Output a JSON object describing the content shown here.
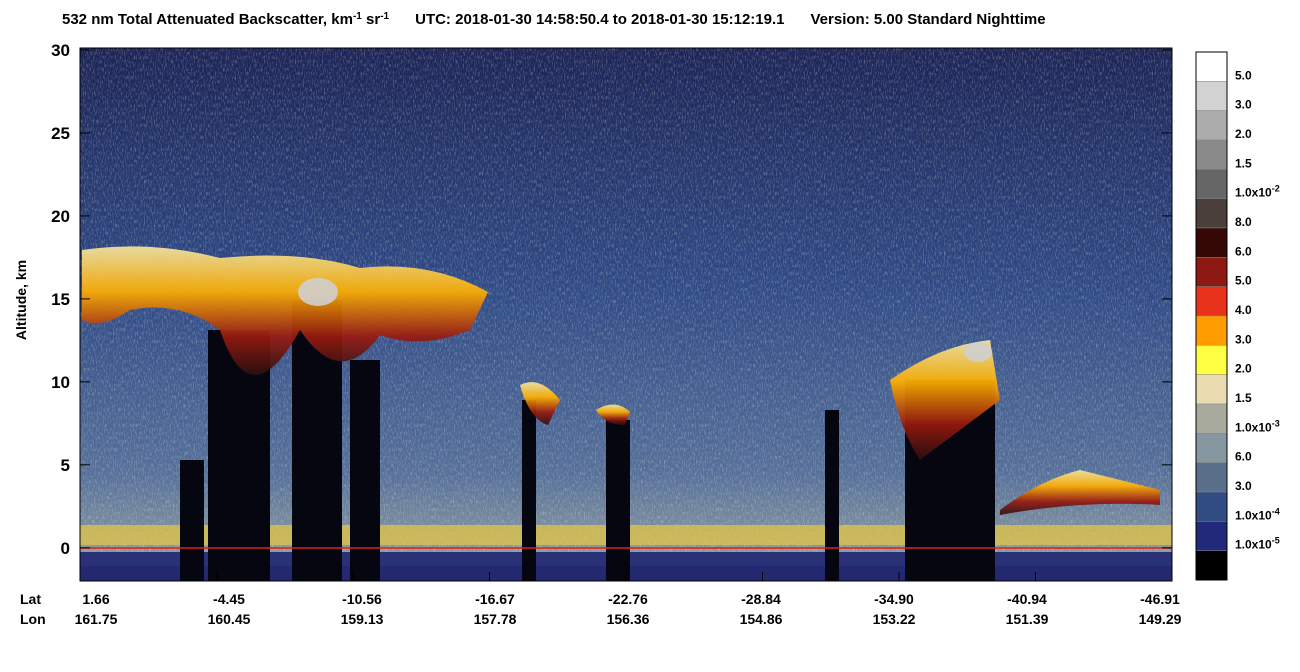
{
  "title": {
    "main": "532 nm Total Attenuated Backscatter, km",
    "sup1": "-1",
    "mid": " sr",
    "sup2": "-1",
    "utc": "UTC:  2018-01-30 14:58:50.4  to  2018-01-30 15:12:19.1",
    "version": "Version: 5.00  Standard  Nighttime"
  },
  "y_axis": {
    "label": "Altitude, km",
    "ylim": [
      -2,
      30
    ],
    "yticks": [
      0,
      5,
      10,
      15,
      20,
      25,
      30
    ]
  },
  "x_axis": {
    "lat_label": "Lat",
    "lon_label": "Lon",
    "lat": [
      "1.66",
      "-4.45",
      "-10.56",
      "-16.67",
      "-22.76",
      "-28.84",
      "-34.90",
      "-40.94",
      "-46.91"
    ],
    "lon": [
      "161.75",
      "160.45",
      "159.13",
      "157.78",
      "156.36",
      "154.86",
      "153.22",
      "151.39",
      "149.29"
    ]
  },
  "colorbar": {
    "colors": [
      "#ffffff",
      "#d2d2d2",
      "#acacac",
      "#8a8a8a",
      "#666666",
      "#4a3f3a",
      "#350805",
      "#8c1a12",
      "#e8321c",
      "#ff9c00",
      "#ffff44",
      "#eadcb0",
      "#a9aa9e",
      "#8797a2",
      "#5a6f8a",
      "#324d84",
      "#22287a",
      "#000000"
    ],
    "labels": [
      {
        "text": "5.0"
      },
      {
        "text": "3.0"
      },
      {
        "text": "2.0"
      },
      {
        "text": "1.5"
      },
      {
        "text": "1.0x10",
        "sup": "-2"
      },
      {
        "text": "8.0"
      },
      {
        "text": "6.0"
      },
      {
        "text": "5.0"
      },
      {
        "text": "4.0"
      },
      {
        "text": "3.0"
      },
      {
        "text": "2.0"
      },
      {
        "text": "1.5"
      },
      {
        "text": "1.0x10",
        "sup": "-3"
      },
      {
        "text": "6.0"
      },
      {
        "text": "3.0"
      },
      {
        "text": "1.0x10",
        "sup": "-4"
      },
      {
        "text": "1.0x10",
        "sup": "-5"
      }
    ]
  }
}
